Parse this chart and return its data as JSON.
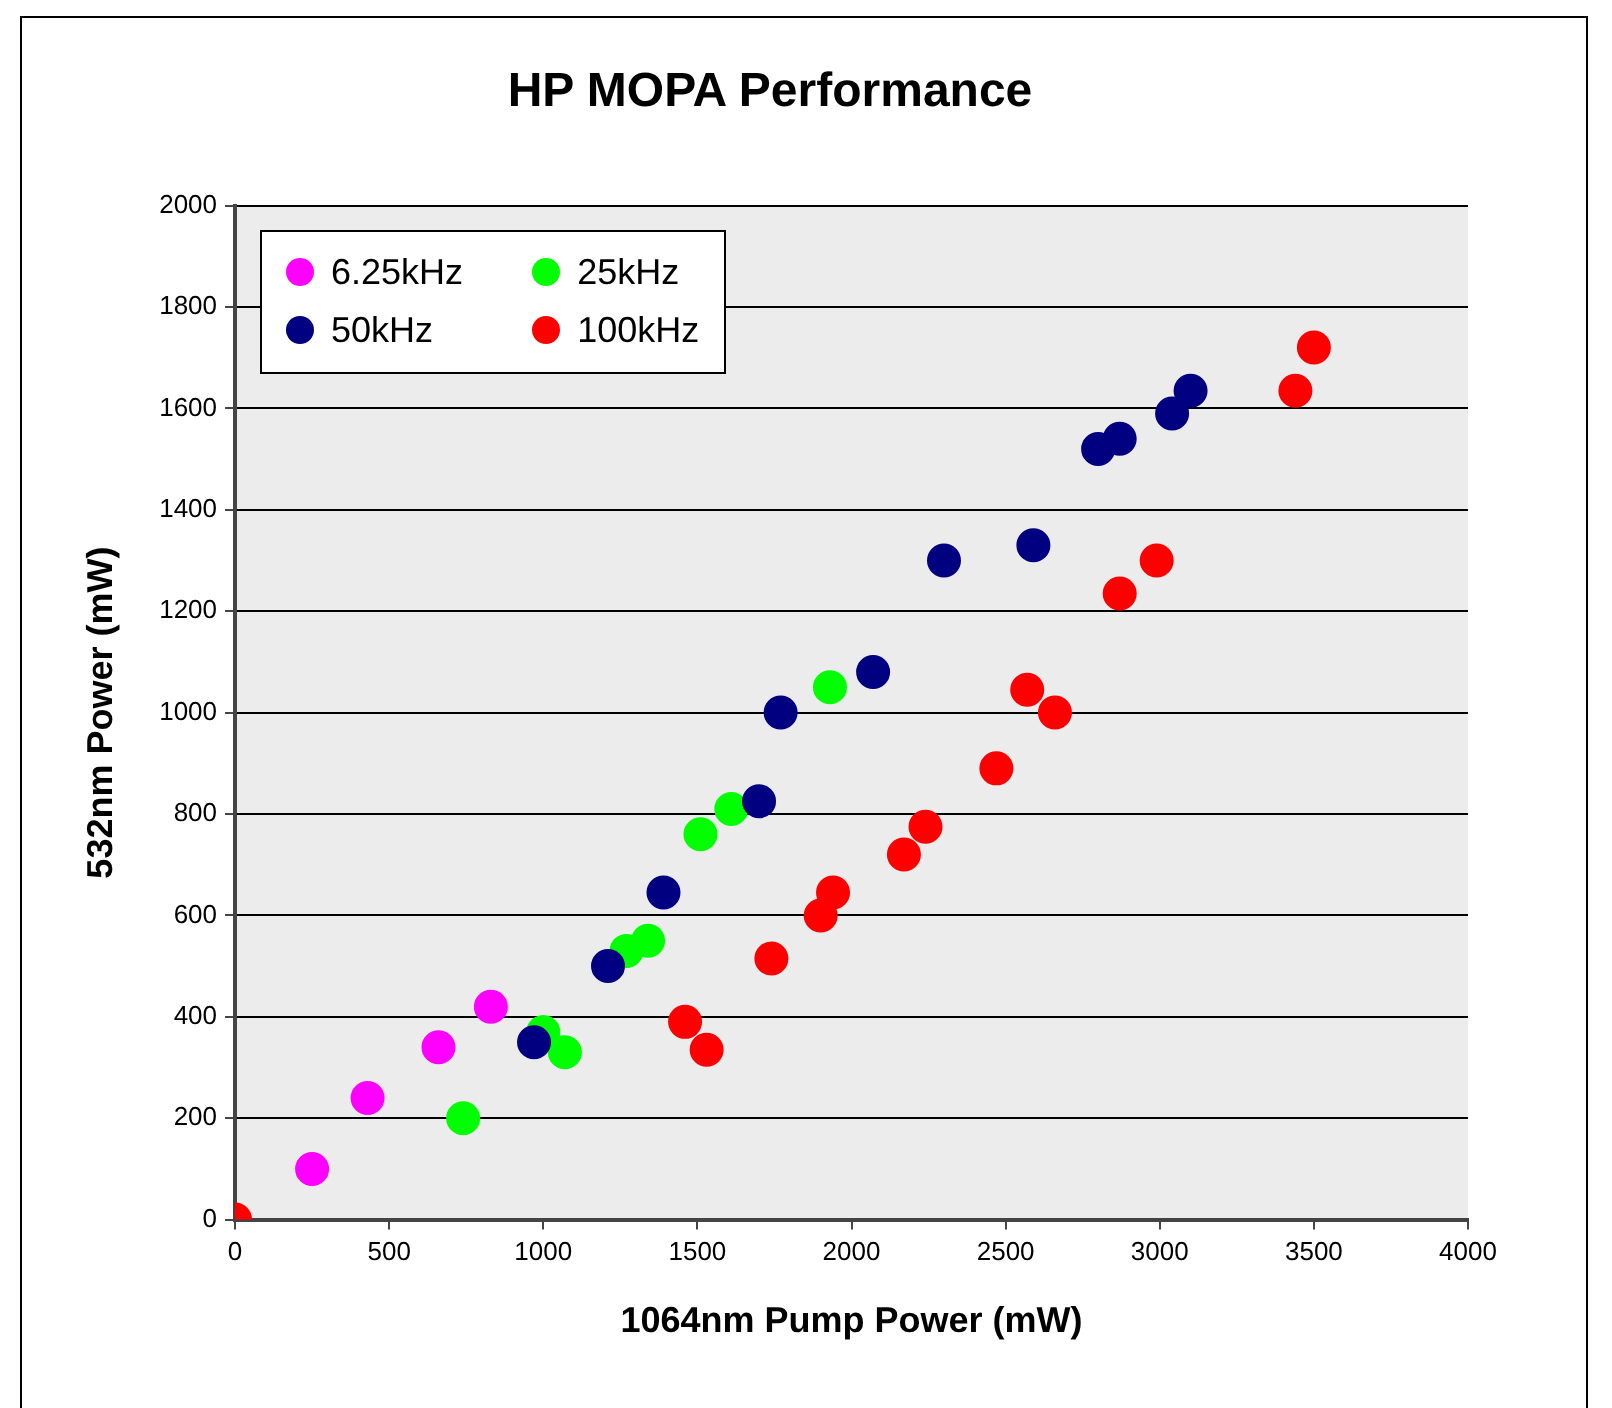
{
  "chart_data": {
    "type": "scatter",
    "title": "HP MOPA Performance",
    "xlabel": "1064nm Pump Power (mW)",
    "ylabel": "532nm Power (mW)",
    "xlim": [
      0,
      4000
    ],
    "xticks": [
      0,
      500,
      1000,
      1500,
      2000,
      2500,
      3000,
      3500,
      4000
    ],
    "ylim": [
      0,
      2000
    ],
    "yticks": [
      0,
      200,
      400,
      600,
      800,
      1000,
      1200,
      1400,
      1600,
      1800,
      2000
    ],
    "grid": "y",
    "legend": "top left",
    "marker": "circle",
    "series": [
      {
        "name": "6.25kHz",
        "color": "#ff00ff",
        "x": [
          250,
          430,
          660,
          830
        ],
        "values": [
          100,
          240,
          340,
          420
        ]
      },
      {
        "name": "25kHz",
        "color": "#00ff00",
        "x": [
          740,
          1000,
          1070,
          1270,
          1340,
          1510,
          1610,
          1930
        ],
        "values": [
          200,
          370,
          330,
          530,
          550,
          760,
          810,
          1050
        ]
      },
      {
        "name": "50kHz",
        "color": "#000080",
        "x": [
          970,
          1210,
          1390,
          1700,
          1770,
          2070,
          2300,
          2590,
          2800,
          2870,
          3040,
          3100
        ],
        "values": [
          350,
          500,
          645,
          825,
          1000,
          1080,
          1300,
          1330,
          1520,
          1540,
          1590,
          1635
        ]
      },
      {
        "name": "100kHz",
        "color": "#ff0000",
        "x": [
          0,
          1460,
          1530,
          1740,
          1900,
          1940,
          2170,
          2240,
          2470,
          2570,
          2660,
          2870,
          2990,
          3440,
          3500
        ],
        "values": [
          0,
          390,
          335,
          515,
          600,
          645,
          720,
          775,
          890,
          1045,
          1000,
          1235,
          1300,
          1635,
          1720
        ]
      }
    ]
  }
}
